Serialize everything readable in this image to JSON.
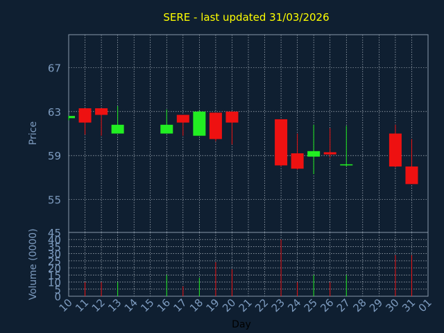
{
  "chart_data": {
    "type": "candlestick",
    "title": "SERE - last updated 31/03/2026",
    "xlabel": "Day",
    "price_panel": {
      "ylabel": "Price",
      "ylim": [
        52,
        70
      ],
      "yticks": [
        "67",
        "63",
        "59",
        "55"
      ],
      "ytick_values": [
        67,
        63,
        59,
        55
      ],
      "grid": true
    },
    "volume_panel": {
      "ylabel": "Volume (0000)",
      "ylim": [
        0,
        45
      ],
      "yticks": [
        "45",
        "40",
        "35",
        "30",
        "25",
        "20",
        "15",
        "10",
        "5",
        "0"
      ],
      "ytick_values": [
        45,
        40,
        35,
        30,
        25,
        20,
        15,
        10,
        5,
        0
      ],
      "grid": true
    },
    "x_labels": [
      "10",
      "11",
      "12",
      "13",
      "14",
      "15",
      "16",
      "17",
      "18",
      "19",
      "20",
      "21",
      "22",
      "23",
      "24",
      "25",
      "26",
      "27",
      "28",
      "29",
      "30",
      "31",
      "01"
    ],
    "candles": [
      {
        "day": "10",
        "open": 62.4,
        "high": 62.6,
        "low": 62.2,
        "close": 62.6
      },
      {
        "day": "11",
        "open": 63.3,
        "high": 63.3,
        "low": 60.9,
        "close": 62.0
      },
      {
        "day": "12",
        "open": 63.3,
        "high": 63.3,
        "low": 60.8,
        "close": 62.7
      },
      {
        "day": "13",
        "open": 61.0,
        "high": 63.5,
        "low": 61.0,
        "close": 61.8
      },
      {
        "day": "16",
        "open": 61.0,
        "high": 63.2,
        "low": 61.0,
        "close": 61.8
      },
      {
        "day": "17",
        "open": 62.7,
        "high": 62.7,
        "low": 60.8,
        "close": 62.0
      },
      {
        "day": "18",
        "open": 60.8,
        "high": 63.1,
        "low": 60.8,
        "close": 63.0
      },
      {
        "day": "19",
        "open": 62.9,
        "high": 62.9,
        "low": 60.3,
        "close": 60.5
      },
      {
        "day": "20",
        "open": 63.0,
        "high": 63.0,
        "low": 60.0,
        "close": 62.0
      },
      {
        "day": "23",
        "open": 62.3,
        "high": 62.3,
        "low": 58.0,
        "close": 58.1
      },
      {
        "day": "24",
        "open": 59.2,
        "high": 61.0,
        "low": 57.7,
        "close": 57.8
      },
      {
        "day": "25",
        "open": 58.9,
        "high": 61.8,
        "low": 57.3,
        "close": 59.4
      },
      {
        "day": "26",
        "open": 59.3,
        "high": 61.5,
        "low": 58.8,
        "close": 59.1
      },
      {
        "day": "27",
        "open": 58.1,
        "high": 61.7,
        "low": 58.0,
        "close": 58.2
      },
      {
        "day": "30",
        "open": 61.0,
        "high": 61.8,
        "low": 57.9,
        "close": 58.0
      },
      {
        "day": "31",
        "open": 58.0,
        "high": 60.5,
        "low": 56.4,
        "close": 56.4
      }
    ],
    "volumes": [
      {
        "day": "10",
        "value": 0
      },
      {
        "day": "11",
        "value": 10
      },
      {
        "day": "12",
        "value": 10
      },
      {
        "day": "13",
        "value": 10
      },
      {
        "day": "16",
        "value": 15
      },
      {
        "day": "17",
        "value": 7
      },
      {
        "day": "18",
        "value": 13
      },
      {
        "day": "19",
        "value": 24
      },
      {
        "day": "20",
        "value": 19
      },
      {
        "day": "23",
        "value": 40
      },
      {
        "day": "24",
        "value": 10
      },
      {
        "day": "25",
        "value": 15
      },
      {
        "day": "26",
        "value": 10
      },
      {
        "day": "27",
        "value": 15
      },
      {
        "day": "30",
        "value": 29
      },
      {
        "day": "31",
        "value": 29
      }
    ],
    "colors": {
      "background": "#0f1f31",
      "plot_border": "#8899aa",
      "grid": "#d0d8e0",
      "title": "#ffff00",
      "axis_text": "#7e9cc0",
      "xlabel": "#000000",
      "up": "#22ee22",
      "down": "#ee1111"
    }
  }
}
